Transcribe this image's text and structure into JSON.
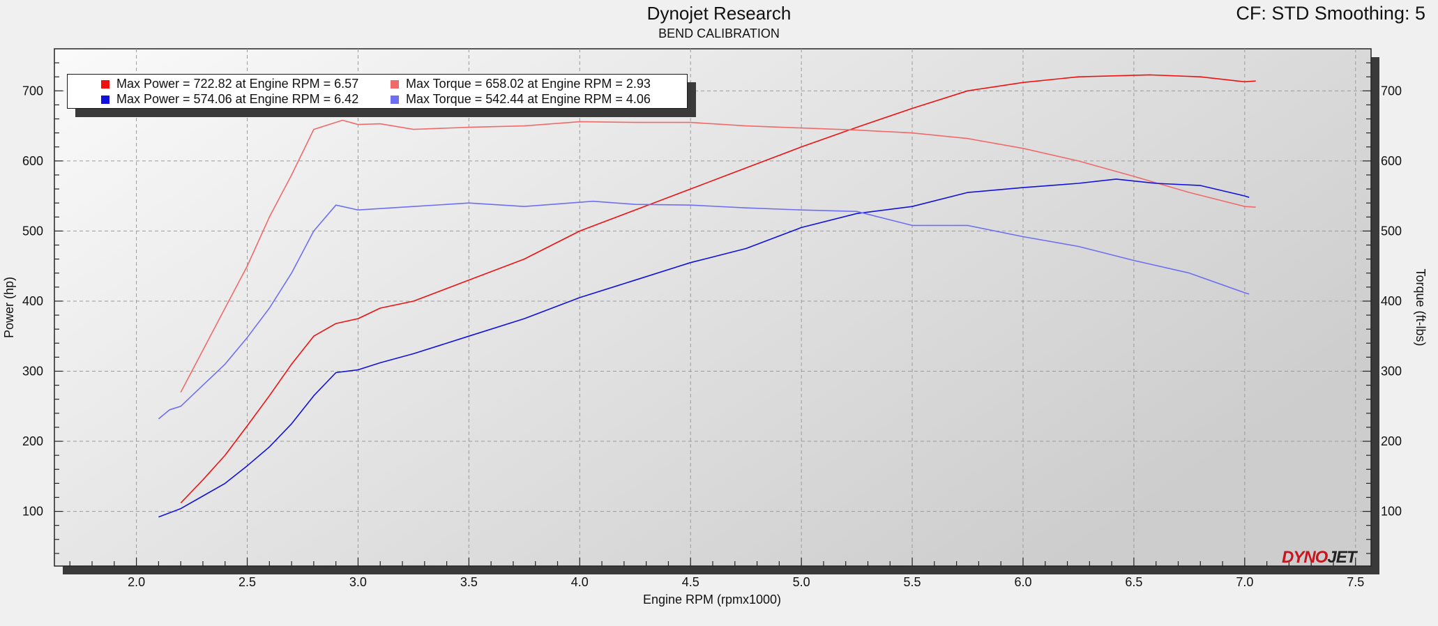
{
  "header": {
    "title": "Dynojet Research",
    "subtitle": "BEND CALIBRATION",
    "right_info": "CF: STD Smoothing: 5"
  },
  "logo": {
    "part1": "DYNO",
    "part2": "JET"
  },
  "legend": {
    "entries": [
      {
        "text": "Max Power = 722.82 at Engine RPM = 6.57",
        "color": "#ee1111"
      },
      {
        "text": "Max Torque = 658.02 at Engine RPM = 2.93",
        "color": "#f06a6a"
      },
      {
        "text": "Max Power = 574.06 at Engine RPM = 6.42",
        "color": "#1111dd"
      },
      {
        "text": "Max Torque = 542.44 at Engine RPM = 4.06",
        "color": "#6e6ef2"
      }
    ]
  },
  "chart_data": {
    "type": "line",
    "xlabel": "Engine RPM (rpmx1000)",
    "ylabel": "Power (hp)",
    "y2label": "Torque (ft-lbs)",
    "xlim": [
      1.63,
      7.57
    ],
    "ylim": [
      22,
      760
    ],
    "y2lim": [
      22,
      760
    ],
    "x_ticks": [
      "2.0",
      "2.5",
      "3.0",
      "3.5",
      "4.0",
      "4.5",
      "5.0",
      "5.5",
      "6.0",
      "6.5",
      "7.0",
      "7.5"
    ],
    "y_ticks": [
      "100",
      "200",
      "300",
      "400",
      "500",
      "600",
      "700"
    ],
    "y2_ticks": [
      "100",
      "200",
      "300",
      "400",
      "500",
      "600",
      "700"
    ],
    "grid": true,
    "legend_position": "top-left",
    "series": [
      {
        "axis": "left",
        "color": "#ee1111",
        "points": [
          [
            2.2,
            112
          ],
          [
            2.3,
            145
          ],
          [
            2.4,
            180
          ],
          [
            2.5,
            222
          ],
          [
            2.6,
            265
          ],
          [
            2.7,
            310
          ],
          [
            2.8,
            350
          ],
          [
            2.9,
            368
          ],
          [
            3.0,
            375
          ],
          [
            3.1,
            390
          ],
          [
            3.25,
            400
          ],
          [
            3.5,
            430
          ],
          [
            3.75,
            460
          ],
          [
            4.0,
            500
          ],
          [
            4.25,
            530
          ],
          [
            4.5,
            560
          ],
          [
            4.75,
            590
          ],
          [
            5.0,
            620
          ],
          [
            5.25,
            648
          ],
          [
            5.5,
            675
          ],
          [
            5.75,
            700
          ],
          [
            6.0,
            712
          ],
          [
            6.25,
            720
          ],
          [
            6.57,
            722.82
          ],
          [
            6.8,
            720
          ],
          [
            7.0,
            713
          ],
          [
            7.05,
            714
          ]
        ]
      },
      {
        "axis": "right",
        "color": "#f06a6a",
        "points": [
          [
            2.2,
            270
          ],
          [
            2.3,
            330
          ],
          [
            2.4,
            390
          ],
          [
            2.5,
            450
          ],
          [
            2.6,
            520
          ],
          [
            2.7,
            580
          ],
          [
            2.8,
            645
          ],
          [
            2.93,
            658.02
          ],
          [
            3.0,
            652
          ],
          [
            3.1,
            653
          ],
          [
            3.25,
            645
          ],
          [
            3.5,
            648
          ],
          [
            3.75,
            650
          ],
          [
            4.0,
            656
          ],
          [
            4.25,
            655
          ],
          [
            4.5,
            655
          ],
          [
            4.75,
            650
          ],
          [
            5.0,
            647
          ],
          [
            5.25,
            644
          ],
          [
            5.5,
            640
          ],
          [
            5.75,
            632
          ],
          [
            6.0,
            618
          ],
          [
            6.25,
            600
          ],
          [
            6.5,
            578
          ],
          [
            6.75,
            555
          ],
          [
            7.0,
            535
          ],
          [
            7.05,
            534
          ]
        ]
      },
      {
        "axis": "left",
        "color": "#1111dd",
        "points": [
          [
            2.1,
            92
          ],
          [
            2.2,
            104
          ],
          [
            2.3,
            122
          ],
          [
            2.4,
            140
          ],
          [
            2.5,
            165
          ],
          [
            2.6,
            192
          ],
          [
            2.7,
            225
          ],
          [
            2.8,
            265
          ],
          [
            2.9,
            298
          ],
          [
            3.0,
            302
          ],
          [
            3.1,
            312
          ],
          [
            3.25,
            325
          ],
          [
            3.5,
            350
          ],
          [
            3.75,
            375
          ],
          [
            4.0,
            405
          ],
          [
            4.25,
            430
          ],
          [
            4.5,
            455
          ],
          [
            4.75,
            475
          ],
          [
            5.0,
            505
          ],
          [
            5.25,
            525
          ],
          [
            5.5,
            535
          ],
          [
            5.75,
            555
          ],
          [
            6.0,
            562
          ],
          [
            6.25,
            568
          ],
          [
            6.42,
            574.06
          ],
          [
            6.6,
            568
          ],
          [
            6.8,
            565
          ],
          [
            7.0,
            550
          ],
          [
            7.02,
            548
          ]
        ]
      },
      {
        "axis": "right",
        "color": "#6e6ef2",
        "points": [
          [
            2.1,
            232
          ],
          [
            2.15,
            245
          ],
          [
            2.2,
            250
          ],
          [
            2.3,
            280
          ],
          [
            2.4,
            310
          ],
          [
            2.5,
            348
          ],
          [
            2.6,
            390
          ],
          [
            2.7,
            440
          ],
          [
            2.8,
            500
          ],
          [
            2.9,
            537
          ],
          [
            3.0,
            530
          ],
          [
            3.25,
            535
          ],
          [
            3.5,
            540
          ],
          [
            3.75,
            535
          ],
          [
            4.06,
            542.44
          ],
          [
            4.25,
            538
          ],
          [
            4.5,
            537
          ],
          [
            4.75,
            533
          ],
          [
            5.0,
            530
          ],
          [
            5.25,
            528
          ],
          [
            5.5,
            508
          ],
          [
            5.75,
            508
          ],
          [
            6.0,
            492
          ],
          [
            6.25,
            478
          ],
          [
            6.5,
            458
          ],
          [
            6.75,
            440
          ],
          [
            7.0,
            412
          ],
          [
            7.02,
            410
          ]
        ]
      }
    ]
  }
}
